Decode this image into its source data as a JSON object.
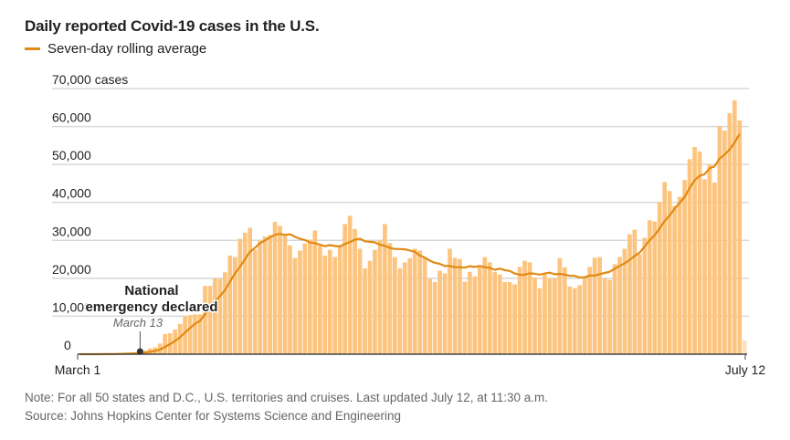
{
  "chart_data": {
    "type": "bar",
    "title": "Daily reported Covid-19 cases in the U.S.",
    "legend": {
      "label": "Seven-day rolling average",
      "color": "#e08a14",
      "placement": "top-left"
    },
    "x_start_label": "March 1",
    "x_end_label": "July 12",
    "x_range": [
      "March 1",
      "July 12"
    ],
    "ylim": [
      0,
      70000
    ],
    "y_ticks": [
      0,
      10000,
      20000,
      30000,
      40000,
      50000,
      60000,
      70000
    ],
    "y_tick_labels": [
      "0",
      "10,000",
      "20,000",
      "30,000",
      "40,000",
      "50,000",
      "60,000",
      "70,000 cases"
    ],
    "grid": true,
    "bar_color": "#fcc47e",
    "partial_day_color": "#fde1bd",
    "values": [
      0,
      0,
      10,
      20,
      30,
      60,
      100,
      120,
      160,
      280,
      400,
      500,
      700,
      900,
      1500,
      1800,
      2800,
      5300,
      5500,
      6500,
      8000,
      10000,
      10300,
      10500,
      10500,
      18000,
      18000,
      20000,
      19800,
      21600,
      26000,
      25600,
      30400,
      32000,
      33300,
      27500,
      30000,
      31000,
      31400,
      34900,
      33800,
      31400,
      28700,
      25400,
      27300,
      29200,
      30200,
      32600,
      28500,
      26000,
      27500,
      25600,
      28500,
      34300,
      36500,
      33000,
      27800,
      22600,
      24600,
      27500,
      30000,
      34300,
      29300,
      25600,
      22600,
      24200,
      25300,
      27800,
      27300,
      25400,
      19800,
      19000,
      22000,
      21300,
      27800,
      25400,
      25100,
      19100,
      21700,
      20500,
      23000,
      25600,
      24200,
      21700,
      21000,
      19000,
      19000,
      18400,
      23000,
      24600,
      24200,
      20200,
      17400,
      21000,
      20000,
      20000,
      25300,
      22900,
      17800,
      17400,
      18200,
      20300,
      23000,
      25400,
      25600,
      20000,
      19600,
      23700,
      25600,
      27800,
      31600,
      32800,
      26300,
      30700,
      35300,
      35000,
      40100,
      45400,
      43000,
      39100,
      41500,
      45900,
      51400,
      54600,
      53400,
      46100,
      50000,
      45200,
      60100,
      58900,
      63500,
      66900,
      61600,
      3600
    ],
    "series": [
      {
        "name": "Seven-day rolling average",
        "type": "line",
        "window_days": 7
      }
    ],
    "annotation": {
      "line1": "National",
      "line2": "emergency declared",
      "date": "March 13",
      "day_index": 12
    },
    "note": "Note: For all 50 states and D.C., U.S. territories and cruises. Last updated July 12, at 11:30 a.m.",
    "source": "Source: Johns Hopkins Center for Systems Science and Engineering"
  }
}
